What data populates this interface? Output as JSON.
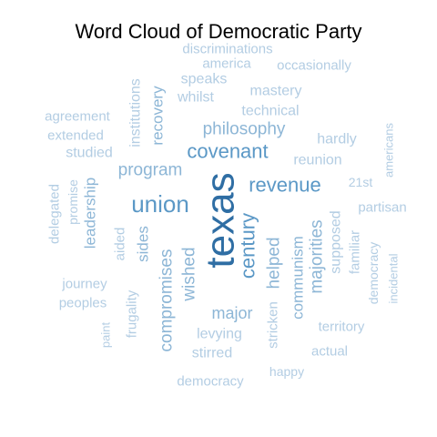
{
  "chart_data": {
    "type": "wordcloud",
    "title": "Word Cloud of Democratic Party",
    "colors": {
      "dark": "#2f6ea4",
      "medium": "#5b98c6",
      "light": "#8db6d6",
      "pale": "#b3cde3"
    },
    "words": [
      {
        "text": "texas",
        "weight": 10,
        "rotate": true,
        "shade": "dark"
      },
      {
        "text": "union",
        "weight": 7,
        "rotate": false,
        "shade": "medium"
      },
      {
        "text": "covenant",
        "weight": 6,
        "rotate": false,
        "shade": "medium"
      },
      {
        "text": "revenue",
        "weight": 6,
        "rotate": false,
        "shade": "medium"
      },
      {
        "text": "century",
        "weight": 6,
        "rotate": true,
        "shade": "medium"
      },
      {
        "text": "program",
        "weight": 5,
        "rotate": false,
        "shade": "light"
      },
      {
        "text": "philosophy",
        "weight": 5,
        "rotate": false,
        "shade": "light"
      },
      {
        "text": "compromises",
        "weight": 5,
        "rotate": true,
        "shade": "light"
      },
      {
        "text": "wished",
        "weight": 5,
        "rotate": true,
        "shade": "light"
      },
      {
        "text": "helped",
        "weight": 5,
        "rotate": true,
        "shade": "light"
      },
      {
        "text": "majorities",
        "weight": 5,
        "rotate": true,
        "shade": "light"
      },
      {
        "text": "major",
        "weight": 4,
        "rotate": false,
        "shade": "light"
      },
      {
        "text": "communism",
        "weight": 4,
        "rotate": true,
        "shade": "light"
      },
      {
        "text": "sides",
        "weight": 4,
        "rotate": true,
        "shade": "light"
      },
      {
        "text": "leadership",
        "weight": 4,
        "rotate": true,
        "shade": "light"
      },
      {
        "text": "recovery",
        "weight": 4,
        "rotate": true,
        "shade": "light"
      },
      {
        "text": "mastery",
        "weight": 3,
        "rotate": false,
        "shade": "pale"
      },
      {
        "text": "technical",
        "weight": 3,
        "rotate": false,
        "shade": "pale"
      },
      {
        "text": "hardly",
        "weight": 3,
        "rotate": false,
        "shade": "pale"
      },
      {
        "text": "reunion",
        "weight": 3,
        "rotate": false,
        "shade": "pale"
      },
      {
        "text": "speaks",
        "weight": 3,
        "rotate": false,
        "shade": "pale"
      },
      {
        "text": "whilst",
        "weight": 3,
        "rotate": false,
        "shade": "pale"
      },
      {
        "text": "america",
        "weight": 3,
        "rotate": false,
        "shade": "pale"
      },
      {
        "text": "occasionally",
        "weight": 3,
        "rotate": false,
        "shade": "pale"
      },
      {
        "text": "discriminations",
        "weight": 3,
        "rotate": false,
        "shade": "pale"
      },
      {
        "text": "institutions",
        "weight": 3,
        "rotate": true,
        "shade": "pale"
      },
      {
        "text": "agreement",
        "weight": 3,
        "rotate": false,
        "shade": "pale"
      },
      {
        "text": "extended",
        "weight": 3,
        "rotate": false,
        "shade": "pale"
      },
      {
        "text": "studied",
        "weight": 3,
        "rotate": false,
        "shade": "pale"
      },
      {
        "text": "delegated",
        "weight": 3,
        "rotate": true,
        "shade": "pale"
      },
      {
        "text": "promise",
        "weight": 3,
        "rotate": true,
        "shade": "pale"
      },
      {
        "text": "aided",
        "weight": 3,
        "rotate": true,
        "shade": "pale"
      },
      {
        "text": "journey",
        "weight": 3,
        "rotate": false,
        "shade": "pale"
      },
      {
        "text": "peoples",
        "weight": 3,
        "rotate": false,
        "shade": "pale"
      },
      {
        "text": "paint",
        "weight": 2,
        "rotate": true,
        "shade": "pale"
      },
      {
        "text": "frugality",
        "weight": 3,
        "rotate": true,
        "shade": "pale"
      },
      {
        "text": "levying",
        "weight": 3,
        "rotate": false,
        "shade": "pale"
      },
      {
        "text": "stirred",
        "weight": 3,
        "rotate": false,
        "shade": "pale"
      },
      {
        "text": "stricken",
        "weight": 3,
        "rotate": true,
        "shade": "pale"
      },
      {
        "text": "democracy",
        "weight": 3,
        "rotate": false,
        "shade": "pale"
      },
      {
        "text": "happy",
        "weight": 3,
        "rotate": false,
        "shade": "pale"
      },
      {
        "text": "actual",
        "weight": 3,
        "rotate": false,
        "shade": "pale"
      },
      {
        "text": "territory",
        "weight": 3,
        "rotate": false,
        "shade": "pale"
      },
      {
        "text": "supposed",
        "weight": 3,
        "rotate": true,
        "shade": "pale"
      },
      {
        "text": "familiar",
        "weight": 3,
        "rotate": true,
        "shade": "pale"
      },
      {
        "text": "democracy",
        "weight": 3,
        "rotate": true,
        "shade": "pale"
      },
      {
        "text": "incidental",
        "weight": 2,
        "rotate": true,
        "shade": "pale"
      },
      {
        "text": "partisan",
        "weight": 3,
        "rotate": false,
        "shade": "pale"
      },
      {
        "text": "21st",
        "weight": 3,
        "rotate": false,
        "shade": "pale"
      },
      {
        "text": "americans",
        "weight": 2,
        "rotate": true,
        "shade": "pale"
      }
    ]
  }
}
